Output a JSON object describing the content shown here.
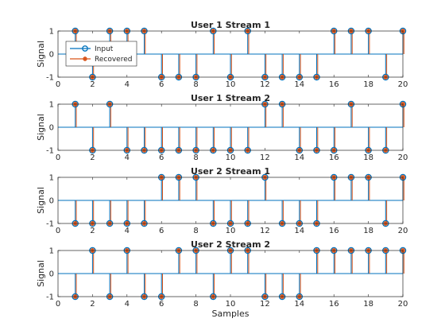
{
  "chart_data": [
    {
      "type": "stem",
      "title": "User 1 Stream 1",
      "ylabel": "Signal",
      "xlabel": "",
      "xlim": [
        0,
        20
      ],
      "ylim": [
        -1,
        1
      ],
      "xticks": [
        0,
        2,
        4,
        6,
        8,
        10,
        12,
        14,
        16,
        18,
        20
      ],
      "yticks": [
        -1,
        0,
        1
      ],
      "x": [
        1,
        2,
        3,
        4,
        5,
        6,
        7,
        8,
        9,
        10,
        11,
        12,
        13,
        14,
        15,
        16,
        17,
        18,
        19,
        20
      ],
      "series": [
        {
          "name": "Input",
          "color": "#0072BD",
          "marker": "circle",
          "values": [
            1,
            -1,
            1,
            1,
            1,
            -1,
            -1,
            -1,
            1,
            -1,
            1,
            -1,
            -1,
            -1,
            -1,
            1,
            1,
            1,
            -1,
            1
          ]
        },
        {
          "name": "Recovered",
          "color": "#D95319",
          "marker": "asterisk",
          "values": [
            1,
            -1,
            1,
            1,
            1,
            -1,
            -1,
            -1,
            1,
            -1,
            1,
            -1,
            -1,
            -1,
            -1,
            1,
            1,
            1,
            -1,
            1
          ]
        }
      ],
      "legend": {
        "position": "upper-left",
        "entries": [
          "Input",
          "Recovered"
        ]
      }
    },
    {
      "type": "stem",
      "title": "User 1 Stream 2",
      "ylabel": "Signal",
      "xlabel": "",
      "xlim": [
        0,
        20
      ],
      "ylim": [
        -1,
        1
      ],
      "xticks": [
        0,
        2,
        4,
        6,
        8,
        10,
        12,
        14,
        16,
        18,
        20
      ],
      "yticks": [
        -1,
        0,
        1
      ],
      "x": [
        1,
        2,
        3,
        4,
        5,
        6,
        7,
        8,
        9,
        10,
        11,
        12,
        13,
        14,
        15,
        16,
        17,
        18,
        19,
        20
      ],
      "series": [
        {
          "name": "Input",
          "color": "#0072BD",
          "marker": "circle",
          "values": [
            1,
            -1,
            1,
            -1,
            -1,
            -1,
            -1,
            -1,
            -1,
            -1,
            -1,
            1,
            1,
            -1,
            -1,
            -1,
            1,
            -1,
            -1,
            1
          ]
        },
        {
          "name": "Recovered",
          "color": "#D95319",
          "marker": "asterisk",
          "values": [
            1,
            -1,
            1,
            -1,
            -1,
            -1,
            -1,
            -1,
            -1,
            -1,
            -1,
            1,
            1,
            -1,
            -1,
            -1,
            1,
            -1,
            -1,
            1
          ]
        }
      ]
    },
    {
      "type": "stem",
      "title": "User 2 Stream 1",
      "ylabel": "Signal",
      "xlabel": "",
      "xlim": [
        0,
        20
      ],
      "ylim": [
        -1,
        1
      ],
      "xticks": [
        0,
        2,
        4,
        6,
        8,
        10,
        12,
        14,
        16,
        18,
        20
      ],
      "yticks": [
        -1,
        0,
        1
      ],
      "x": [
        1,
        2,
        3,
        4,
        5,
        6,
        7,
        8,
        9,
        10,
        11,
        12,
        13,
        14,
        15,
        16,
        17,
        18,
        19,
        20
      ],
      "series": [
        {
          "name": "Input",
          "color": "#0072BD",
          "marker": "circle",
          "values": [
            -1,
            -1,
            -1,
            -1,
            -1,
            1,
            1,
            1,
            -1,
            -1,
            -1,
            1,
            -1,
            -1,
            -1,
            1,
            1,
            1,
            -1,
            1
          ]
        },
        {
          "name": "Recovered",
          "color": "#D95319",
          "marker": "asterisk",
          "values": [
            -1,
            -1,
            -1,
            -1,
            -1,
            1,
            1,
            1,
            -1,
            -1,
            -1,
            1,
            -1,
            -1,
            -1,
            1,
            1,
            1,
            -1,
            1
          ]
        }
      ]
    },
    {
      "type": "stem",
      "title": "User 2 Stream 2",
      "ylabel": "Signal",
      "xlabel": "Samples",
      "xlim": [
        0,
        20
      ],
      "ylim": [
        -1,
        1
      ],
      "xticks": [
        0,
        2,
        4,
        6,
        8,
        10,
        12,
        14,
        16,
        18,
        20
      ],
      "yticks": [
        -1,
        0,
        1
      ],
      "x": [
        1,
        2,
        3,
        4,
        5,
        6,
        7,
        8,
        9,
        10,
        11,
        12,
        13,
        14,
        15,
        16,
        17,
        18,
        19,
        20
      ],
      "series": [
        {
          "name": "Input",
          "color": "#0072BD",
          "marker": "circle",
          "values": [
            -1,
            1,
            -1,
            1,
            -1,
            -1,
            1,
            1,
            -1,
            1,
            1,
            -1,
            -1,
            -1,
            1,
            1,
            1,
            1,
            1,
            1
          ]
        },
        {
          "name": "Recovered",
          "color": "#D95319",
          "marker": "asterisk",
          "values": [
            -1,
            1,
            -1,
            1,
            -1,
            -1,
            1,
            1,
            -1,
            1,
            1,
            -1,
            -1,
            -1,
            1,
            1,
            1,
            1,
            1,
            1
          ]
        }
      ]
    }
  ]
}
